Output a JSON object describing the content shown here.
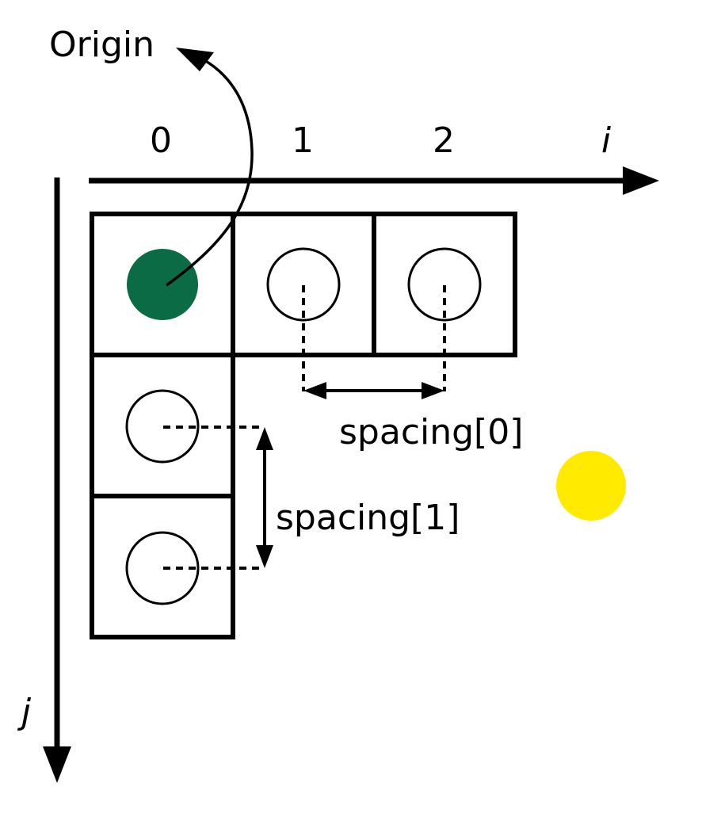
{
  "labels": {
    "origin": "Origin",
    "axis_i": "i",
    "axis_j": "j",
    "index_0": "0",
    "index_1": "1",
    "index_2": "2",
    "spacing_0": "spacing[0]",
    "spacing_1": "spacing[1]"
  },
  "colors": {
    "origin_dot": "#0a6b44",
    "yellow_dot": "#ffea00",
    "stroke": "#000000"
  }
}
